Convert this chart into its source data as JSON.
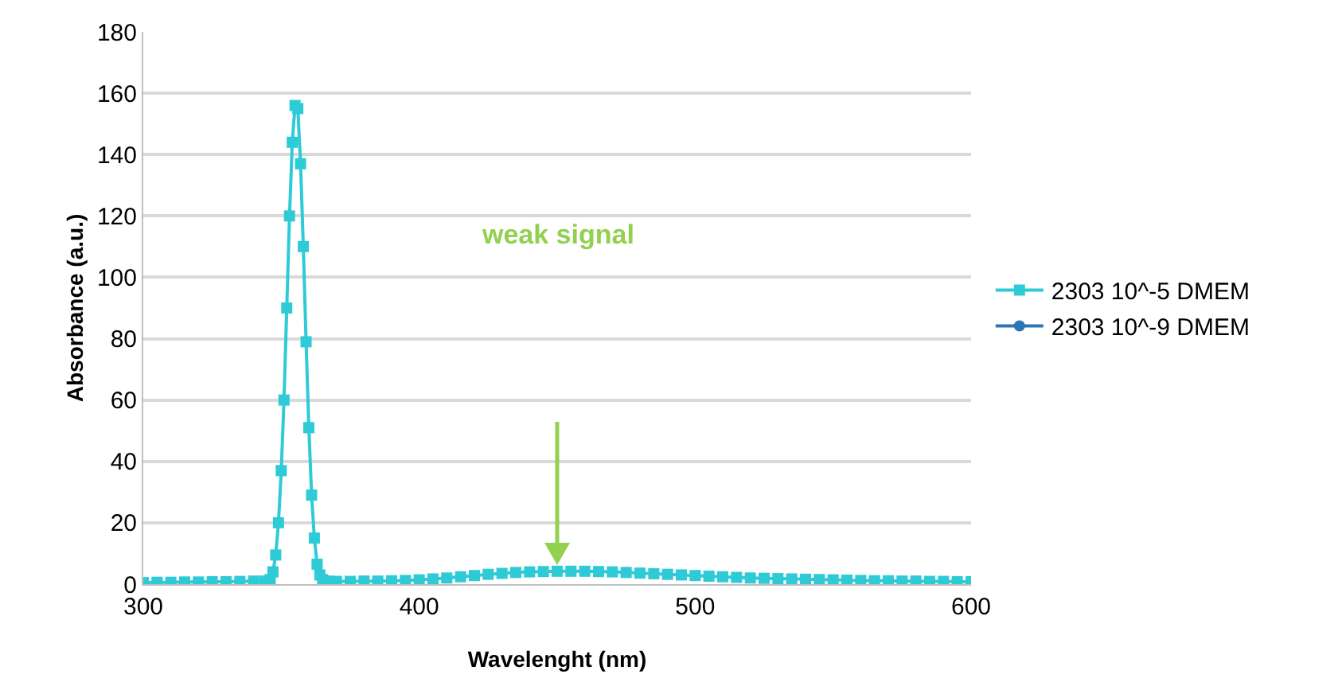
{
  "chart_data": {
    "type": "line",
    "xlabel": "Wavelenght (nm)",
    "ylabel": "Absorbance (a.u.)",
    "xlim": [
      300,
      600
    ],
    "xticks": [
      300,
      400,
      500,
      600
    ],
    "ylim": [
      0,
      180
    ],
    "yticks": [
      0,
      20,
      40,
      60,
      80,
      100,
      120,
      140,
      160,
      180
    ],
    "grid": "y",
    "legend": "right",
    "line_style": "solid",
    "series": [
      {
        "name": "2303 10^-5 DMEM",
        "color": "#2ecbd6",
        "marker": "square",
        "x": [
          300,
          305,
          310,
          315,
          320,
          325,
          330,
          335,
          340,
          344,
          346,
          347,
          348,
          349,
          350,
          351,
          352,
          353,
          354,
          355,
          356,
          357,
          358,
          359,
          360,
          361,
          362,
          363,
          364,
          365,
          367,
          370,
          375,
          380,
          385,
          390,
          395,
          400,
          405,
          410,
          415,
          420,
          425,
          430,
          435,
          440,
          445,
          450,
          455,
          460,
          465,
          470,
          475,
          480,
          485,
          490,
          495,
          500,
          505,
          510,
          515,
          520,
          525,
          530,
          535,
          540,
          545,
          550,
          555,
          560,
          565,
          570,
          575,
          580,
          585,
          590,
          595,
          600
        ],
        "values": [
          0.5,
          0.6,
          0.6,
          0.7,
          0.7,
          0.8,
          0.8,
          0.9,
          1,
          1,
          1.5,
          4,
          9.5,
          20,
          37,
          60,
          90,
          120,
          144,
          156,
          155,
          137,
          110,
          79,
          51,
          29,
          15,
          6.5,
          3,
          1.5,
          1,
          0.9,
          0.9,
          1,
          1,
          1.1,
          1.2,
          1.4,
          1.7,
          2,
          2.4,
          2.8,
          3.2,
          3.5,
          3.8,
          4,
          4.1,
          4.2,
          4.2,
          4.2,
          4.1,
          4,
          3.8,
          3.6,
          3.4,
          3.2,
          3,
          2.8,
          2.6,
          2.4,
          2.2,
          2,
          1.9,
          1.8,
          1.7,
          1.6,
          1.5,
          1.4,
          1.3,
          1.2,
          1.1,
          1.1,
          1,
          1,
          0.9,
          0.9,
          0.8,
          0.8
        ]
      },
      {
        "name": "2303 10^-9 DMEM",
        "color": "#2e75b6",
        "marker": "circle"
      }
    ],
    "annotations": [
      "weak signal"
    ]
  }
}
